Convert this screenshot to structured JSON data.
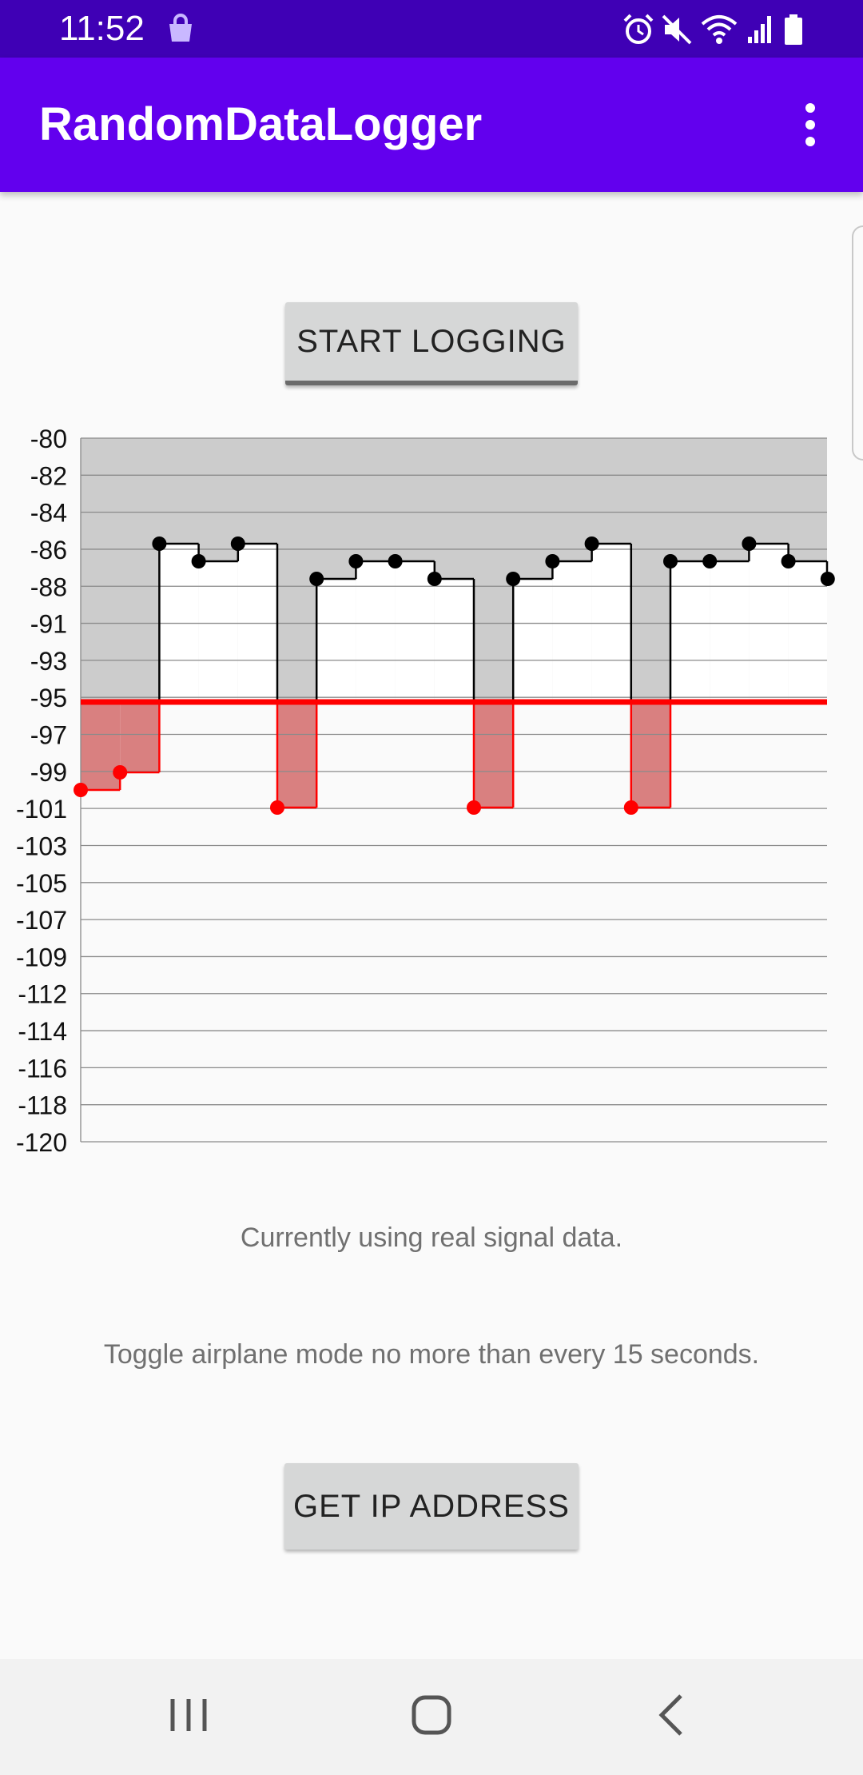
{
  "status_bar": {
    "time": "11:52",
    "icons": [
      "shopping-bag-icon",
      "alarm-icon",
      "mute-icon",
      "wifi-icon",
      "signal-icon",
      "battery-icon"
    ]
  },
  "app_bar": {
    "title": "RandomDataLogger",
    "overflow_icon": "more-vert-icon",
    "color": "#6200ee",
    "status_color": "#3f00b5"
  },
  "buttons": {
    "start_logging": "START LOGGING",
    "get_ip_address": "GET IP ADDRESS"
  },
  "chart_data": {
    "type": "line",
    "step": true,
    "title": "",
    "xlabel": "",
    "ylabel": "",
    "y_tick_labels": [
      "-80",
      "-82",
      "-84",
      "-86",
      "-88",
      "-91",
      "-93",
      "-95",
      "-97",
      "-99",
      "-101",
      "-103",
      "-105",
      "-107",
      "-109",
      "-112",
      "-114",
      "-116",
      "-118",
      "-120"
    ],
    "ylim": [
      -120,
      -80
    ],
    "threshold": -95,
    "threshold_color": "#ff0000",
    "above_color": "#000000",
    "below_color": "#ff0000",
    "background_fill": "#cccccc",
    "below_fill": "#d98080",
    "grid": true,
    "x": [
      0,
      1,
      2,
      3,
      4,
      5,
      6,
      7,
      8,
      9,
      10,
      11,
      12,
      13,
      14,
      15,
      16,
      17,
      18,
      19
    ],
    "y": [
      -100,
      -99,
      -86,
      -87,
      -86,
      -101,
      -88,
      -87,
      -87,
      -88,
      -101,
      -88,
      -87,
      -86,
      -101,
      -87,
      -87,
      -86,
      -87,
      -88
    ]
  },
  "info": {
    "data_source": "Currently using real signal data.",
    "instructions": "Toggle airplane mode no more than every 15 seconds."
  },
  "nav_bar": {
    "buttons": [
      "recent-apps-icon",
      "home-icon",
      "back-icon"
    ]
  }
}
